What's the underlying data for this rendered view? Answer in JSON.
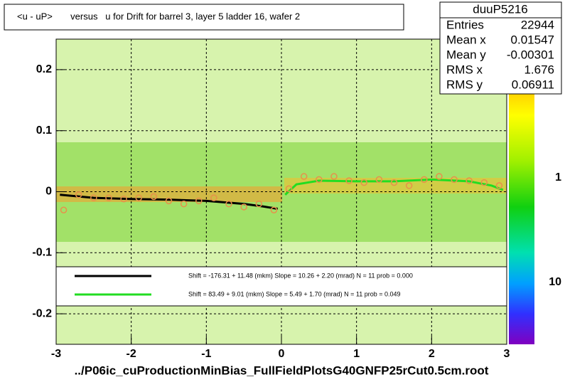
{
  "chart_data": {
    "type": "profile2d",
    "title": "<u - uP>       versus   u for Drift for barrel 3, layer 5 ladder 16, wafer 2",
    "footer": "../P06ic_cuProductionMinBias_FullFieldPlotsG40GNFP25rCut0.5cm.root",
    "xlim": [
      -3,
      3
    ],
    "ylim": [
      -0.25,
      0.25
    ],
    "xticks": [
      -3,
      -2,
      -1,
      0,
      1,
      2,
      3
    ],
    "yticks": [
      -0.2,
      -0.1,
      0,
      0.1,
      0.2
    ],
    "grid": true,
    "palette_labels": [
      "1",
      "10"
    ],
    "stats": {
      "name": "duuP5216",
      "rows": [
        [
          "Entries",
          "22944"
        ],
        [
          "Mean x",
          "0.01547"
        ],
        [
          "Mean y",
          "-0.00301"
        ],
        [
          "RMS x",
          "1.676"
        ],
        [
          "RMS y",
          "0.06911"
        ]
      ]
    },
    "profile": {
      "color": "#e8904a",
      "x": [
        -2.9,
        -2.7,
        -2.5,
        -2.3,
        -2.1,
        -1.9,
        -1.7,
        -1.5,
        -1.3,
        -1.1,
        -0.9,
        -0.7,
        -0.5,
        -0.3,
        -0.1,
        0.1,
        0.3,
        0.5,
        0.7,
        0.9,
        1.1,
        1.3,
        1.5,
        1.7,
        1.9,
        2.1,
        2.3,
        2.5,
        2.7,
        2.9
      ],
      "values": [
        -0.03,
        -0.005,
        -0.01,
        -0.01,
        -0.012,
        -0.01,
        -0.008,
        -0.015,
        -0.02,
        -0.015,
        -0.01,
        -0.02,
        -0.025,
        -0.02,
        -0.03,
        0.005,
        0.025,
        0.02,
        0.025,
        0.018,
        0.015,
        0.02,
        0.015,
        0.01,
        0.02,
        0.025,
        0.02,
        0.018,
        0.015,
        0.01
      ]
    },
    "series": [
      {
        "color": "#000000",
        "legend": "Shift =  -176.31 + 11.48 (mkm) Slope =    10.26 + 2.20 (mrad)  N = 11 prob = 0.000",
        "x": [
          -2.95,
          -2.5,
          -2,
          -1.5,
          -1,
          -0.5,
          -0.25,
          -0.05
        ],
        "values": [
          -0.005,
          -0.01,
          -0.012,
          -0.013,
          -0.015,
          -0.02,
          -0.024,
          -0.028
        ]
      },
      {
        "color": "#22dd22",
        "legend": "Shift =    83.49 + 9.01 (mkm) Slope =     5.49 + 1.70 (mrad)  N = 11 prob = 0.049",
        "x": [
          0.05,
          0.2,
          0.5,
          1,
          1.5,
          2,
          2.5,
          2.8,
          2.95
        ],
        "values": [
          -0.005,
          0.012,
          0.018,
          0.017,
          0.017,
          0.02,
          0.017,
          0.01,
          0.003
        ]
      }
    ]
  }
}
